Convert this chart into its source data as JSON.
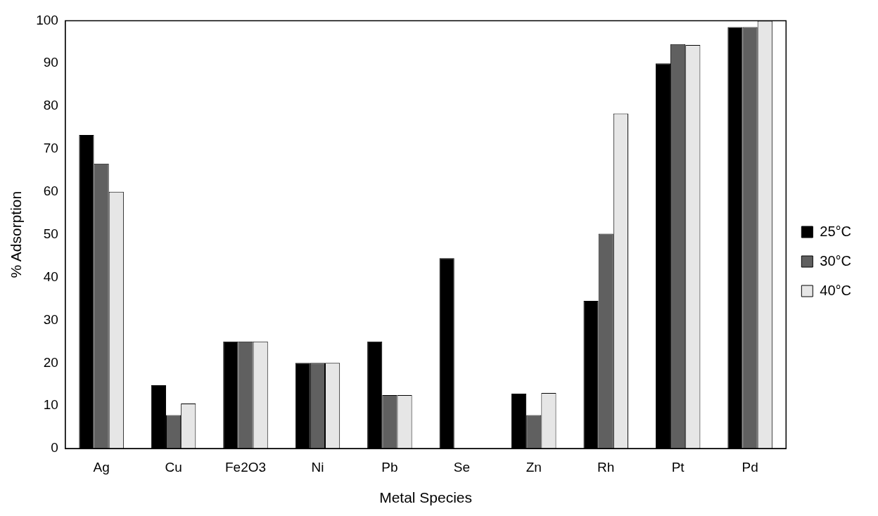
{
  "chart_data": {
    "type": "bar",
    "xlabel": "Metal Species",
    "ylabel": "% Adsorption",
    "categories": [
      "Ag",
      "Cu",
      "Fe2O3",
      "Ni",
      "Pb",
      "Se",
      "Zn",
      "Rh",
      "Pt",
      "Pd"
    ],
    "series": [
      {
        "name": "25°C",
        "color": "#000000",
        "values": [
          73.3,
          14.8,
          25,
          20,
          25,
          44.5,
          12.8,
          34.5,
          90,
          98.5
        ]
      },
      {
        "name": "30°C",
        "color": "#606060",
        "values": [
          66.6,
          7.8,
          25,
          20,
          12.5,
          0,
          7.8,
          50.2,
          94.5,
          98.5
        ]
      },
      {
        "name": "40°C",
        "color": "#e6e6e6",
        "values": [
          60,
          10.5,
          25,
          20,
          12.5,
          0,
          13,
          78.3,
          94.3,
          100
        ]
      }
    ],
    "ylim": [
      0,
      100
    ],
    "yticks": [
      0,
      10,
      20,
      30,
      40,
      50,
      60,
      70,
      80,
      90,
      100
    ],
    "grid": false,
    "legend": "right"
  }
}
